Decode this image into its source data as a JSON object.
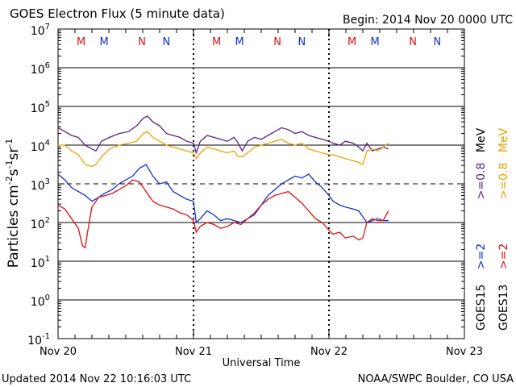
{
  "header": {
    "title": "GOES Electron Flux (5 minute data)",
    "begin": "Begin: 2014 Nov 20 0000 UTC"
  },
  "footer": {
    "updated": "Updated 2014 Nov 22 10:16:03 UTC",
    "credit": "NOAA/SWPC Boulder, CO USA"
  },
  "colors": {
    "goes15_08": "#5a1e8c",
    "goes13_08": "#f0a000",
    "goes15_2": "#1030d0",
    "goes13_2": "#e01010",
    "marker_m_red": "#e01010",
    "marker_m_blue": "#1030d0",
    "marker_n_red": "#e01010",
    "marker_n_blue": "#1030d0"
  },
  "chart_data": {
    "type": "line",
    "title": "GOES Electron Flux (5 minute data)",
    "xlabel": "Universal Time",
    "ylabel": "Particles cm-2s-1sr-1",
    "x_unit": "days since 2014 Nov 20 0000 UTC",
    "xlim": [
      0,
      3
    ],
    "x_ticks": [
      {
        "x": 0,
        "label": "Nov 20"
      },
      {
        "x": 1,
        "label": "Nov 21"
      },
      {
        "x": 2,
        "label": "Nov 22"
      },
      {
        "x": 3,
        "label": "Nov 23"
      }
    ],
    "y_scale": "log",
    "ylim_exp": [
      -1,
      7
    ],
    "y_tick_labels": [
      "10",
      "10",
      "10",
      "10",
      "10",
      "10",
      "10",
      "10",
      "10"
    ],
    "y_tick_exps": [
      "-1",
      "0",
      "1",
      "2",
      "3",
      "4",
      "5",
      "6",
      "7"
    ],
    "reference_line_exp": 3,
    "markers": [
      {
        "x": 0.17,
        "label": "M",
        "color": "red"
      },
      {
        "x": 0.34,
        "label": "M",
        "color": "blue"
      },
      {
        "x": 0.62,
        "label": "N",
        "color": "red"
      },
      {
        "x": 0.8,
        "label": "N",
        "color": "blue"
      },
      {
        "x": 1.17,
        "label": "M",
        "color": "red"
      },
      {
        "x": 1.34,
        "label": "M",
        "color": "blue"
      },
      {
        "x": 1.62,
        "label": "N",
        "color": "red"
      },
      {
        "x": 1.8,
        "label": "N",
        "color": "blue"
      },
      {
        "x": 2.17,
        "label": "M",
        "color": "red"
      },
      {
        "x": 2.34,
        "label": "M",
        "color": "blue"
      },
      {
        "x": 2.62,
        "label": "N",
        "color": "red"
      },
      {
        "x": 2.8,
        "label": "N",
        "color": "blue"
      }
    ],
    "legend_right": [
      {
        "label": "GOES15",
        "color": "#000000"
      },
      {
        "label": ">=2",
        "color": "#1030d0"
      },
      {
        "label": ">=0.8",
        "color": "#5a1e8c"
      },
      {
        "label": "MeV",
        "color": "#000000"
      }
    ],
    "legend_right2": [
      {
        "label": "GOES13",
        "color": "#000000"
      },
      {
        "label": ">=2",
        "color": "#e01010"
      },
      {
        "label": ">=0.8",
        "color": "#f0a000"
      },
      {
        "label": "MeV",
        "color": "#000000"
      }
    ],
    "series": [
      {
        "name": "GOES15 >=0.8 MeV",
        "color": "#5a1e8c",
        "x": [
          0.0,
          0.05,
          0.1,
          0.15,
          0.2,
          0.25,
          0.28,
          0.32,
          0.38,
          0.45,
          0.52,
          0.58,
          0.63,
          0.66,
          0.7,
          0.75,
          0.8,
          0.85,
          0.9,
          0.95,
          1.0,
          1.02,
          1.05,
          1.1,
          1.15,
          1.2,
          1.25,
          1.3,
          1.33,
          1.36,
          1.4,
          1.45,
          1.5,
          1.55,
          1.6,
          1.65,
          1.7,
          1.75,
          1.8,
          1.85,
          1.9,
          1.95,
          2.0,
          2.03,
          2.08,
          2.12,
          2.18,
          2.22,
          2.25,
          2.28,
          2.32,
          2.36,
          2.4,
          2.44
        ],
        "y": [
          4.45,
          4.35,
          4.25,
          4.2,
          4.0,
          3.9,
          3.85,
          4.1,
          4.2,
          4.3,
          4.35,
          4.5,
          4.7,
          4.75,
          4.6,
          4.5,
          4.3,
          4.25,
          4.2,
          4.1,
          4.05,
          3.8,
          4.1,
          4.25,
          4.2,
          4.15,
          4.1,
          4.2,
          4.05,
          3.85,
          4.1,
          4.2,
          4.15,
          4.25,
          4.35,
          4.45,
          4.4,
          4.3,
          4.35,
          4.25,
          4.2,
          4.15,
          4.1,
          4.05,
          4.0,
          4.1,
          4.05,
          3.95,
          3.85,
          4.05,
          3.85,
          3.9,
          3.95,
          3.9
        ]
      },
      {
        "name": "GOES13 >=0.8 MeV",
        "color": "#f0a000",
        "x": [
          0.0,
          0.05,
          0.1,
          0.15,
          0.2,
          0.25,
          0.28,
          0.32,
          0.38,
          0.45,
          0.52,
          0.58,
          0.63,
          0.66,
          0.7,
          0.75,
          0.8,
          0.85,
          0.9,
          0.95,
          1.0,
          1.02,
          1.05,
          1.1,
          1.15,
          1.2,
          1.25,
          1.3,
          1.33,
          1.36,
          1.4,
          1.45,
          1.5,
          1.55,
          1.6,
          1.65,
          1.7,
          1.75,
          1.8,
          1.85,
          1.9,
          1.95,
          2.0,
          2.03,
          2.08,
          2.12,
          2.18,
          2.22,
          2.25,
          2.28,
          2.32,
          2.36,
          2.4,
          2.44
        ],
        "y": [
          4.0,
          4.0,
          3.85,
          3.75,
          3.5,
          3.45,
          3.5,
          3.7,
          3.9,
          4.0,
          4.05,
          4.1,
          4.3,
          4.35,
          4.2,
          4.1,
          4.0,
          3.95,
          3.9,
          3.85,
          3.8,
          3.65,
          3.8,
          3.95,
          3.9,
          3.85,
          3.8,
          3.85,
          3.7,
          3.7,
          3.8,
          3.95,
          4.0,
          4.05,
          4.1,
          4.15,
          4.05,
          4.0,
          4.05,
          3.9,
          3.85,
          3.8,
          3.75,
          3.75,
          3.7,
          3.65,
          3.6,
          3.55,
          3.5,
          3.85,
          3.9,
          3.85,
          3.95,
          4.05
        ]
      },
      {
        "name": "GOES15 >=2 MeV",
        "color": "#1030d0",
        "x": [
          0.0,
          0.05,
          0.1,
          0.15,
          0.2,
          0.25,
          0.3,
          0.34,
          0.4,
          0.45,
          0.5,
          0.55,
          0.6,
          0.65,
          0.7,
          0.75,
          0.8,
          0.85,
          0.9,
          0.95,
          1.0,
          1.02,
          1.05,
          1.1,
          1.15,
          1.2,
          1.25,
          1.3,
          1.35,
          1.4,
          1.45,
          1.5,
          1.55,
          1.6,
          1.65,
          1.7,
          1.75,
          1.8,
          1.85,
          1.9,
          1.95,
          2.0,
          2.03,
          2.08,
          2.12,
          2.18,
          2.22,
          2.25,
          2.28,
          2.32,
          2.36,
          2.4,
          2.44
        ],
        "y": [
          3.25,
          3.1,
          2.9,
          2.8,
          2.7,
          2.55,
          2.65,
          2.75,
          2.85,
          3.0,
          3.1,
          3.2,
          3.4,
          3.5,
          3.2,
          3.0,
          3.05,
          2.8,
          2.7,
          2.6,
          2.55,
          2.0,
          2.1,
          2.3,
          2.2,
          2.05,
          2.1,
          2.05,
          2.0,
          2.1,
          2.2,
          2.45,
          2.7,
          2.85,
          3.0,
          3.1,
          3.2,
          3.15,
          3.25,
          3.05,
          2.9,
          2.7,
          2.55,
          2.45,
          2.4,
          2.35,
          2.3,
          2.15,
          2.0,
          2.05,
          2.1,
          2.05,
          2.05
        ]
      },
      {
        "name": "GOES13 >=2 MeV",
        "color": "#e01010",
        "x": [
          0.0,
          0.05,
          0.1,
          0.15,
          0.18,
          0.2,
          0.22,
          0.25,
          0.3,
          0.35,
          0.4,
          0.45,
          0.5,
          0.55,
          0.6,
          0.65,
          0.7,
          0.75,
          0.8,
          0.85,
          0.9,
          0.95,
          1.0,
          1.02,
          1.05,
          1.1,
          1.15,
          1.2,
          1.25,
          1.3,
          1.35,
          1.4,
          1.45,
          1.5,
          1.55,
          1.6,
          1.65,
          1.7,
          1.75,
          1.8,
          1.85,
          1.9,
          1.95,
          2.0,
          2.03,
          2.08,
          2.12,
          2.18,
          2.22,
          2.25,
          2.28,
          2.32,
          2.36,
          2.4,
          2.44
        ],
        "y": [
          2.45,
          2.35,
          2.1,
          1.85,
          1.4,
          1.35,
          1.8,
          2.4,
          2.65,
          2.7,
          2.75,
          2.85,
          2.95,
          3.1,
          3.05,
          2.8,
          2.55,
          2.45,
          2.4,
          2.35,
          2.25,
          2.2,
          2.05,
          1.75,
          1.9,
          2.0,
          1.95,
          1.85,
          1.9,
          2.0,
          1.95,
          2.1,
          2.25,
          2.45,
          2.6,
          2.7,
          2.75,
          2.8,
          2.65,
          2.5,
          2.3,
          2.1,
          2.0,
          1.8,
          1.7,
          1.75,
          1.6,
          1.65,
          1.55,
          1.6,
          2.0,
          2.1,
          2.05,
          2.05,
          2.3
        ]
      }
    ]
  }
}
